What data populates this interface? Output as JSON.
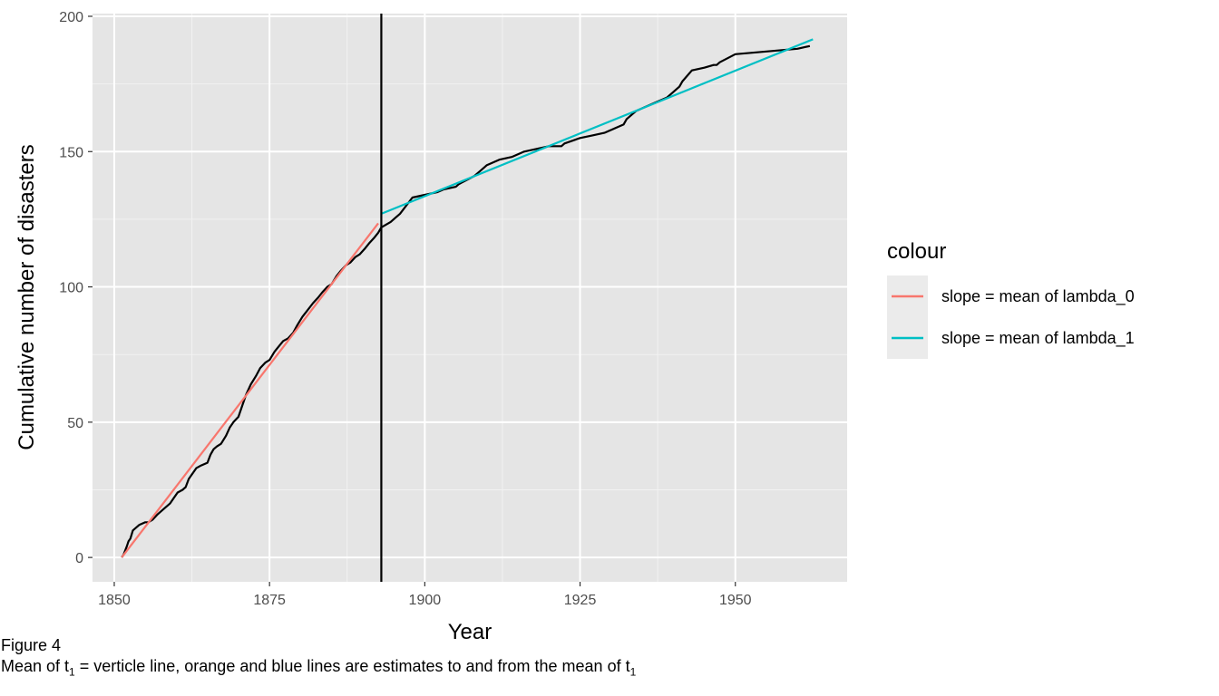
{
  "chart_data": {
    "type": "line",
    "xlabel": "Year",
    "ylabel": "Cumulative number of disasters",
    "xlim": [
      1846.5,
      1968
    ],
    "ylim": [
      -9,
      201
    ],
    "xticks": [
      1850,
      1875,
      1900,
      1925,
      1950
    ],
    "yticks": [
      0,
      50,
      100,
      150,
      200
    ],
    "grid": true,
    "background": "#e5e5e5",
    "vline_x": 1893,
    "cumulative_series": {
      "color": "#000000",
      "x": [
        1851.2,
        1851.5,
        1852,
        1852.3,
        1852.6,
        1853,
        1854,
        1855,
        1855.5,
        1856.2,
        1857,
        1858,
        1859,
        1859.6,
        1860.2,
        1861,
        1861.5,
        1862,
        1862.6,
        1863.2,
        1864,
        1865,
        1865.5,
        1866,
        1866.5,
        1867.2,
        1868,
        1868.6,
        1869.2,
        1870,
        1870.6,
        1871.2,
        1872,
        1872.8,
        1873.5,
        1874.3,
        1875,
        1875.8,
        1876.5,
        1877.2,
        1878,
        1878.8,
        1879.5,
        1880.3,
        1881,
        1882,
        1882.8,
        1883.5,
        1884.3,
        1885,
        1885.8,
        1886.5,
        1887.3,
        1888,
        1888.8,
        1889.5,
        1890.3,
        1891,
        1891.8,
        1892.5,
        1893,
        1894.5,
        1895.5,
        1896,
        1898,
        1900,
        1902,
        1903,
        1905,
        1905.5,
        1908,
        1909,
        1910,
        1912,
        1914,
        1916,
        1918,
        1920,
        1922,
        1922.5,
        1925,
        1927,
        1929,
        1930,
        1932,
        1932.5,
        1934,
        1935,
        1937,
        1939,
        1940,
        1941,
        1941.5,
        1943,
        1945,
        1946.5,
        1947,
        1947.5,
        1950,
        1955,
        1960,
        1962
      ],
      "y": [
        0,
        1,
        4,
        6,
        7,
        10,
        12,
        13,
        13,
        14,
        16,
        18,
        20,
        22,
        24,
        25,
        26,
        29,
        31,
        33,
        34,
        35,
        38,
        40,
        41,
        42,
        45,
        48,
        50,
        52,
        56,
        60,
        64,
        67,
        70,
        72,
        73,
        76,
        78,
        80,
        81,
        83,
        86,
        89,
        91,
        94,
        96,
        98,
        100,
        101,
        104,
        106,
        108,
        109,
        111,
        112,
        114,
        116,
        118,
        120,
        122,
        124,
        126,
        127,
        133,
        134,
        135,
        136,
        137,
        138,
        141,
        143,
        145,
        147,
        148,
        150,
        151,
        152,
        152,
        153,
        155,
        156,
        157,
        158,
        160,
        162,
        165,
        166,
        168,
        170,
        172,
        174,
        176,
        180,
        181,
        182,
        182,
        183,
        186,
        187,
        188,
        189
      ]
    },
    "series": [
      {
        "name": "slope = mean of lambda_0",
        "color": "#f8766d",
        "x": [
          1851.2,
          1892.5
        ],
        "y": [
          0,
          123.5
        ]
      },
      {
        "name": "slope = mean of lambda_1",
        "color": "#00bfc4",
        "x": [
          1893,
          1962.5
        ],
        "y": [
          127,
          191.5
        ]
      }
    ],
    "legend": {
      "title": "colour",
      "placement": "right"
    }
  },
  "caption": {
    "line1": "Figure 4",
    "line2_part1": "Mean of  t",
    "sub1": "1",
    "line2_part2": "  = verticle line, orange and blue lines are estimates to and from the mean of  t",
    "sub2": "1"
  }
}
